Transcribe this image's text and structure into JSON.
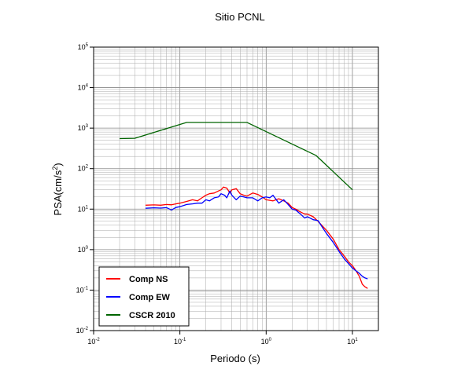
{
  "chart_data": {
    "type": "line",
    "title": "Sitio PCNL",
    "xlabel": "Periodo (s)",
    "ylabel": "PSA(cm/s²)",
    "x_scale": "log",
    "y_scale": "log",
    "xlim": [
      0.01,
      20
    ],
    "ylim": [
      0.01,
      100000
    ],
    "grid": true,
    "legend_position": "bottom-left",
    "x_ticks": [
      {
        "base": "10",
        "exp": "-2",
        "value": 0.01
      },
      {
        "base": "10",
        "exp": "-1",
        "value": 0.1
      },
      {
        "base": "10",
        "exp": "0",
        "value": 1
      },
      {
        "base": "10",
        "exp": "1",
        "value": 10
      }
    ],
    "y_ticks": [
      {
        "base": "10",
        "exp": "-2",
        "value": 0.01
      },
      {
        "base": "10",
        "exp": "-1",
        "value": 0.1
      },
      {
        "base": "10",
        "exp": "0",
        "value": 1
      },
      {
        "base": "10",
        "exp": "1",
        "value": 10
      },
      {
        "base": "10",
        "exp": "2",
        "value": 100
      },
      {
        "base": "10",
        "exp": "3",
        "value": 1000
      },
      {
        "base": "10",
        "exp": "4",
        "value": 10000
      },
      {
        "base": "10",
        "exp": "5",
        "value": 100000
      }
    ],
    "series": [
      {
        "name": "Comp NS",
        "color": "#ff0000",
        "points": [
          [
            0.04,
            12.5
          ],
          [
            0.05,
            12.7
          ],
          [
            0.06,
            12.5
          ],
          [
            0.07,
            13.0
          ],
          [
            0.08,
            12.8
          ],
          [
            0.09,
            13.5
          ],
          [
            0.1,
            14.0
          ],
          [
            0.12,
            15.5
          ],
          [
            0.14,
            17.0
          ],
          [
            0.16,
            16.0
          ],
          [
            0.18,
            19.0
          ],
          [
            0.2,
            22.0
          ],
          [
            0.22,
            24.0
          ],
          [
            0.25,
            25.0
          ],
          [
            0.28,
            28.0
          ],
          [
            0.3,
            30.0
          ],
          [
            0.32,
            35.0
          ],
          [
            0.35,
            33.0
          ],
          [
            0.38,
            25.0
          ],
          [
            0.4,
            30.0
          ],
          [
            0.45,
            32.0
          ],
          [
            0.5,
            24.0
          ],
          [
            0.55,
            22.0
          ],
          [
            0.6,
            21.0
          ],
          [
            0.7,
            25.0
          ],
          [
            0.8,
            23.0
          ],
          [
            0.9,
            20.0
          ],
          [
            1.0,
            17.0
          ],
          [
            1.1,
            16.5
          ],
          [
            1.2,
            16.0
          ],
          [
            1.4,
            18.0
          ],
          [
            1.6,
            16.0
          ],
          [
            1.8,
            14.0
          ],
          [
            2.0,
            11.0
          ],
          [
            2.2,
            10.0
          ],
          [
            2.5,
            8.5
          ],
          [
            2.8,
            7.5
          ],
          [
            3.0,
            7.5
          ],
          [
            3.5,
            6.5
          ],
          [
            4.0,
            5.0
          ],
          [
            4.5,
            3.8
          ],
          [
            5.0,
            3.0
          ],
          [
            6.0,
            1.8
          ],
          [
            7.0,
            1.0
          ],
          [
            8.0,
            0.7
          ],
          [
            9.0,
            0.5
          ],
          [
            10.0,
            0.4
          ],
          [
            11.0,
            0.3
          ],
          [
            12.0,
            0.22
          ],
          [
            13.0,
            0.14
          ],
          [
            14.0,
            0.12
          ],
          [
            15.0,
            0.11
          ]
        ]
      },
      {
        "name": "Comp EW",
        "color": "#0000ff",
        "points": [
          [
            0.04,
            10.5
          ],
          [
            0.05,
            10.8
          ],
          [
            0.06,
            10.6
          ],
          [
            0.07,
            10.9
          ],
          [
            0.08,
            9.5
          ],
          [
            0.09,
            11.0
          ],
          [
            0.1,
            11.5
          ],
          [
            0.12,
            13.0
          ],
          [
            0.14,
            13.5
          ],
          [
            0.16,
            14.0
          ],
          [
            0.18,
            14.0
          ],
          [
            0.2,
            17.0
          ],
          [
            0.22,
            16.0
          ],
          [
            0.25,
            19.0
          ],
          [
            0.28,
            20.0
          ],
          [
            0.3,
            24.0
          ],
          [
            0.33,
            22.0
          ],
          [
            0.35,
            19.0
          ],
          [
            0.38,
            28.0
          ],
          [
            0.4,
            22.0
          ],
          [
            0.45,
            17.0
          ],
          [
            0.5,
            21.0
          ],
          [
            0.55,
            20.0
          ],
          [
            0.6,
            19.0
          ],
          [
            0.7,
            19.0
          ],
          [
            0.8,
            16.0
          ],
          [
            0.9,
            19.0
          ],
          [
            1.0,
            20.0
          ],
          [
            1.1,
            19.0
          ],
          [
            1.2,
            22.0
          ],
          [
            1.4,
            14.0
          ],
          [
            1.6,
            17.0
          ],
          [
            1.8,
            13.0
          ],
          [
            2.0,
            10.0
          ],
          [
            2.2,
            9.5
          ],
          [
            2.5,
            7.5
          ],
          [
            2.8,
            6.0
          ],
          [
            3.0,
            6.5
          ],
          [
            3.5,
            5.5
          ],
          [
            4.0,
            5.2
          ],
          [
            4.5,
            3.5
          ],
          [
            5.0,
            2.5
          ],
          [
            6.0,
            1.5
          ],
          [
            7.0,
            0.9
          ],
          [
            8.0,
            0.6
          ],
          [
            9.0,
            0.45
          ],
          [
            10.0,
            0.35
          ],
          [
            11.0,
            0.3
          ],
          [
            12.0,
            0.26
          ],
          [
            13.0,
            0.22
          ],
          [
            14.0,
            0.2
          ],
          [
            15.0,
            0.19
          ]
        ]
      },
      {
        "name": "CSCR 2010",
        "color": "#006400",
        "points": [
          [
            0.02,
            550
          ],
          [
            0.03,
            560
          ],
          [
            0.12,
            1380
          ],
          [
            0.6,
            1380
          ],
          [
            3.8,
            210
          ],
          [
            10.0,
            30
          ]
        ]
      }
    ]
  }
}
